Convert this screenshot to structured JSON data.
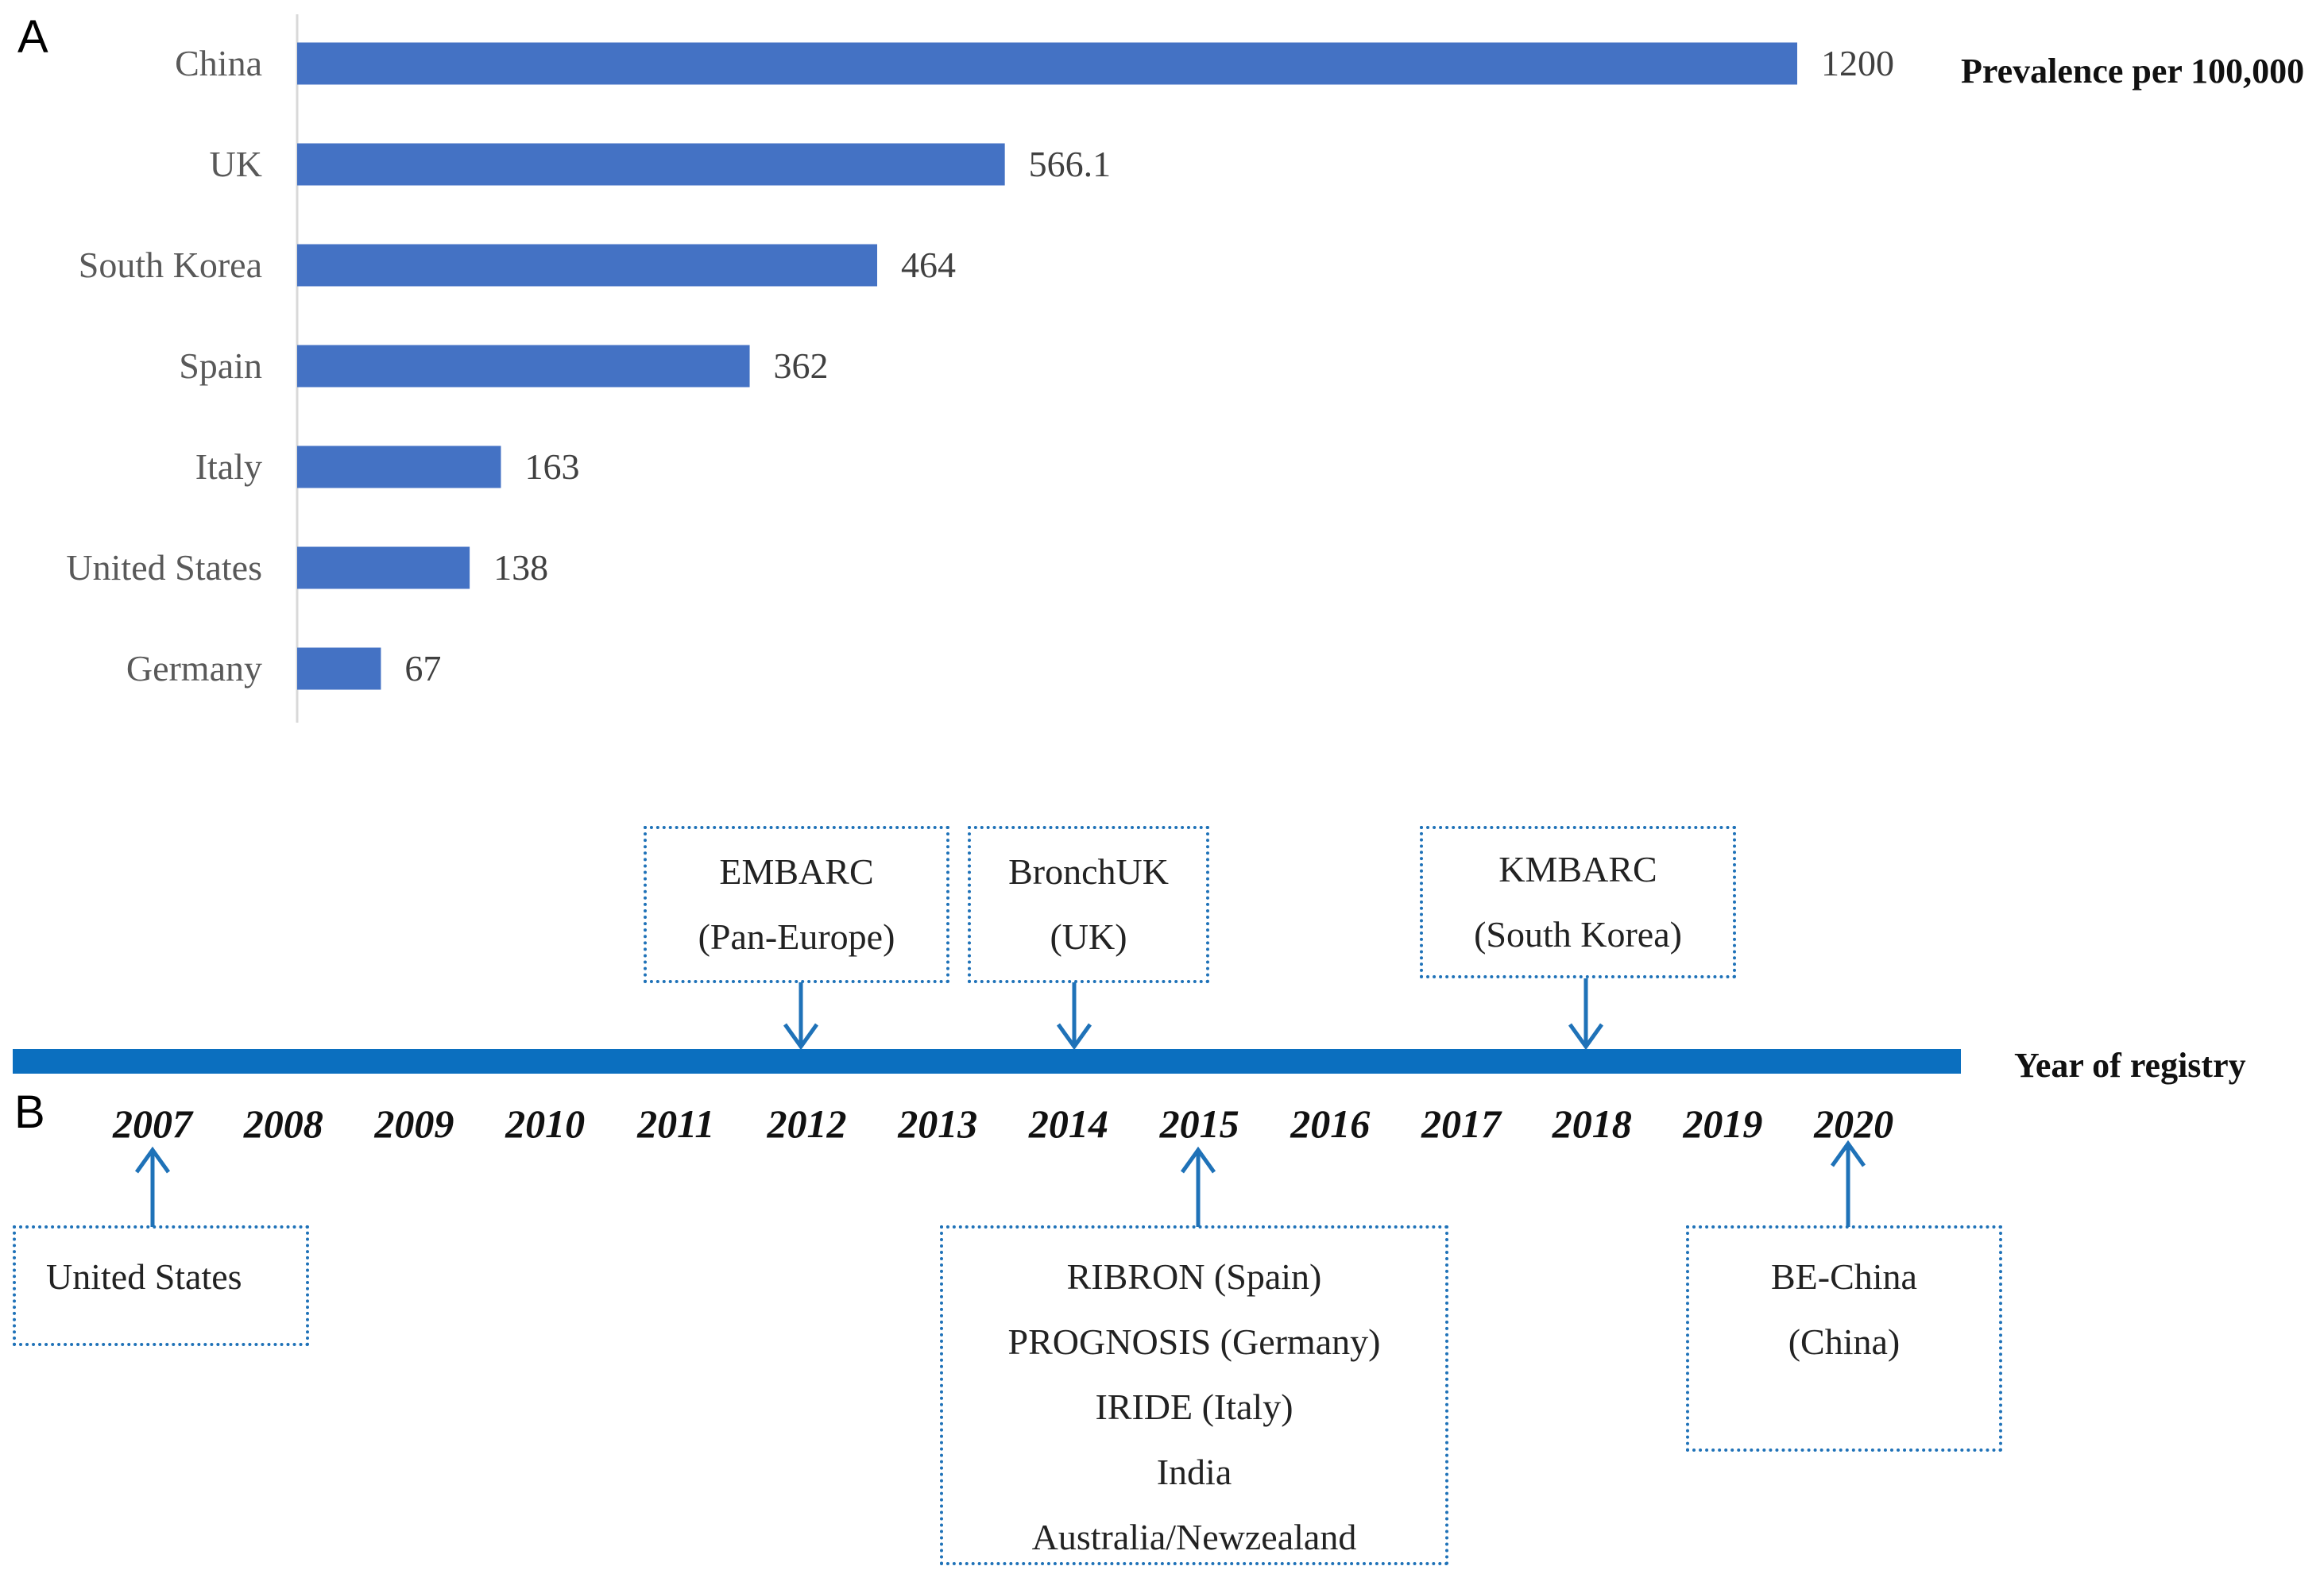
{
  "panel_a_label": "A",
  "panel_b_label": "B",
  "chart_data": [
    {
      "type": "bar",
      "orientation": "horizontal",
      "categories": [
        "China",
        "UK",
        "South Korea",
        "Spain",
        "Italy",
        "United States",
        "Germany"
      ],
      "values": [
        1200,
        566.1,
        464,
        362,
        163,
        138,
        67
      ],
      "value_labels": [
        "1200",
        "566.1",
        "464",
        "362",
        "163",
        "138",
        "67"
      ],
      "title": "",
      "xlabel": "Prevalence per 100,000",
      "ylabel": "",
      "xlim": [
        0,
        1200
      ],
      "bar_color": "#4472c4",
      "grid": false,
      "legend": "none"
    }
  ],
  "timeline": {
    "title": "Year of registry",
    "line_color": "#0b6fbf",
    "years": [
      "2007",
      "2008",
      "2009",
      "2010",
      "2011",
      "2012",
      "2013",
      "2014",
      "2015",
      "2016",
      "2017",
      "2018",
      "2019",
      "2020"
    ],
    "above": [
      {
        "lines": [
          "EMBARC",
          "(Pan-Europe)"
        ],
        "year": "2012"
      },
      {
        "lines": [
          "BronchUK",
          "(UK)"
        ],
        "year": "2014"
      },
      {
        "lines": [
          "KMBARC",
          "(South Korea)"
        ],
        "year": "2018"
      }
    ],
    "below": [
      {
        "lines": [
          "United States"
        ],
        "year": "2007"
      },
      {
        "lines": [
          "RIBRON (Spain)",
          "PROGNOSIS (Germany)",
          "IRIDE (Italy)",
          "India",
          "Australia/Newzealand"
        ],
        "year": "2015"
      },
      {
        "lines": [
          "BE-China",
          "(China)"
        ],
        "year": "2020"
      }
    ]
  }
}
